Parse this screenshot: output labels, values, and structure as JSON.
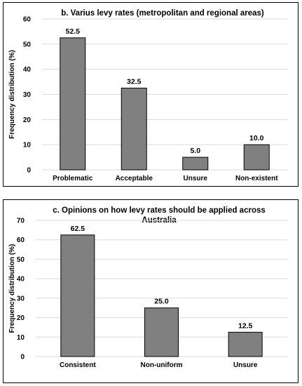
{
  "chart_data": [
    {
      "type": "bar",
      "title": "b. Varius levy rates (metropolitan and regional areas)",
      "title_lines": [
        "b. Varius levy rates (metropolitan and regional areas)"
      ],
      "ylabel": "Frequency distribution (%)",
      "xlabel": "",
      "categories": [
        "Problematic",
        "Acceptable",
        "Unsure",
        "Non-existent"
      ],
      "values": [
        52.5,
        32.5,
        5.0,
        10.0
      ],
      "data_labels": [
        "52.5",
        "32.5",
        "5.0",
        "10.0"
      ],
      "ylim": [
        0,
        60
      ],
      "yticks": [
        "0",
        "10",
        "20",
        "30",
        "40",
        "50",
        "60"
      ],
      "grid": true,
      "bar_color": "#808080"
    },
    {
      "type": "bar",
      "title": "c. Opinions on how levy rates should be applied across Australia",
      "title_lines": [
        "c. Opinions on how levy rates should be applied across",
        "Australia"
      ],
      "ylabel": "Frequency distribution (%)",
      "xlabel": "",
      "categories": [
        "Consistent",
        "Non-uniform",
        "Unsure"
      ],
      "values": [
        62.5,
        25.0,
        12.5
      ],
      "data_labels": [
        "62.5",
        "25.0",
        "12.5"
      ],
      "ylim": [
        0,
        70
      ],
      "yticks": [
        "0",
        "10",
        "20",
        "30",
        "40",
        "50",
        "60",
        "70"
      ],
      "grid": true,
      "bar_color": "#808080"
    }
  ]
}
